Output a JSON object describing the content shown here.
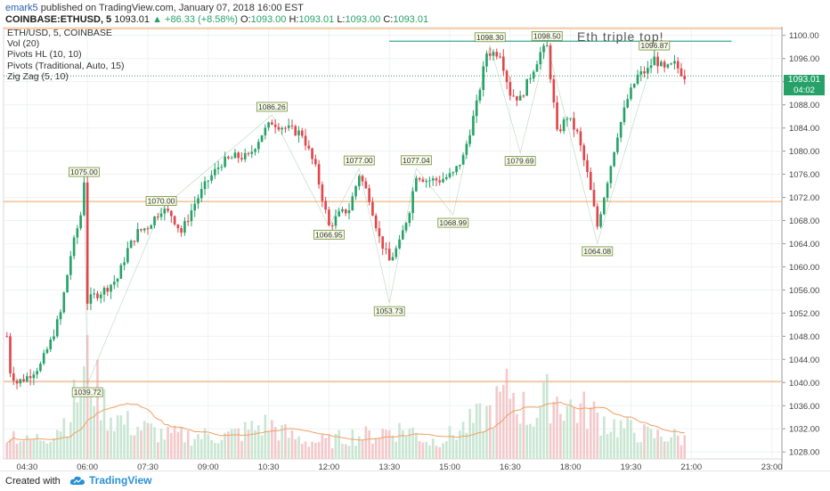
{
  "header": {
    "user": "emark5",
    "published_text": " published on TradingView.com, January 07, 2018 16:00 EST",
    "symbol": "COINBASE:ETHUSD, 5",
    "last": "1093.01",
    "change": "▲ +86.33 (+8.58%)",
    "o_label": "O:",
    "o_value": "1093.00",
    "h_label": "H:",
    "h_value": "1093.01",
    "l_label": "L:",
    "l_value": "1093.00",
    "c_label": "C:",
    "c_value": "1093.01"
  },
  "legend": {
    "items": [
      "ETH/USD, 5, COINBASE",
      "Vol (20)",
      "Pivots HL (10, 10)",
      "Pivots (Traditional, Auto, 15)",
      "Zig Zag (5, 10)"
    ]
  },
  "annotation": "Eth triple top!",
  "price_tag": "1093.01",
  "time_tag": "04:02",
  "footer": {
    "created_with": "Created with",
    "brand": "TradingView"
  },
  "colors": {
    "up": "#26a269",
    "down": "#e0454a",
    "pivot_line": "#f0a060",
    "resistance": "#3aa890",
    "zigzag": "#7ab07a",
    "volume_ma": "#f0a060",
    "current_price": "#26a269"
  },
  "chart_data": {
    "type": "candlestick",
    "y_ticks": [
      1028,
      1032,
      1036,
      1040,
      1044,
      1048,
      1052,
      1056,
      1060,
      1064,
      1068,
      1072,
      1076,
      1080,
      1084,
      1088,
      1092,
      1096,
      1100
    ],
    "ylim": [
      1026.8,
      1101.5
    ],
    "x_ticks": [
      "04:30",
      "06:00",
      "07:30",
      "09:00",
      "10:30",
      "12:00",
      "13:30",
      "15:00",
      "16:30",
      "18:00",
      "19:30",
      "21:00",
      "23:00"
    ],
    "current_price": 1093.01,
    "horizontal_levels": [
      1040.2,
      1071.3,
      1101.2
    ],
    "resistance_line": {
      "value": 1099.0,
      "from": "13:30",
      "to": "22:00"
    },
    "pivot_labels": [
      {
        "text": "1075.00",
        "time": "05:55",
        "value": 1075.0,
        "pos": "above"
      },
      {
        "text": "1070.00",
        "time": "07:50",
        "value": 1070.0,
        "pos": "above"
      },
      {
        "text": "1086.26",
        "time": "10:35",
        "value": 1086.26,
        "pos": "above"
      },
      {
        "text": "1077.00",
        "time": "12:45",
        "value": 1077.0,
        "pos": "above"
      },
      {
        "text": "1077.04",
        "time": "14:10",
        "value": 1077.04,
        "pos": "above"
      },
      {
        "text": "1098.30",
        "time": "16:00",
        "value": 1098.3,
        "pos": "above"
      },
      {
        "text": "1098.50",
        "time": "17:25",
        "value": 1098.5,
        "pos": "above"
      },
      {
        "text": "1096.87",
        "time": "20:05",
        "value": 1096.87,
        "pos": "above"
      },
      {
        "text": "1039.72",
        "time": "06:00",
        "value": 1039.72,
        "pos": "below"
      },
      {
        "text": "1066.95",
        "time": "12:00",
        "value": 1066.95,
        "pos": "below"
      },
      {
        "text": "1053.73",
        "time": "13:30",
        "value": 1053.73,
        "pos": "below"
      },
      {
        "text": "1068.99",
        "time": "15:05",
        "value": 1068.99,
        "pos": "below"
      },
      {
        "text": "1079.69",
        "time": "16:45",
        "value": 1079.69,
        "pos": "below"
      },
      {
        "text": "1064.08",
        "time": "18:40",
        "value": 1064.08,
        "pos": "below"
      }
    ],
    "path": [
      [
        "04:00",
        1048
      ],
      [
        "04:05",
        1042
      ],
      [
        "04:15",
        1040
      ],
      [
        "04:30",
        1041
      ],
      [
        "04:50",
        1043
      ],
      [
        "05:05",
        1047
      ],
      [
        "05:20",
        1052
      ],
      [
        "05:35",
        1062
      ],
      [
        "05:50",
        1069
      ],
      [
        "05:55",
        1075
      ],
      [
        "06:00",
        1054
      ],
      [
        "06:10",
        1055
      ],
      [
        "06:25",
        1056
      ],
      [
        "06:45",
        1058
      ],
      [
        "07:00",
        1063
      ],
      [
        "07:15",
        1066
      ],
      [
        "07:30",
        1067
      ],
      [
        "07:50",
        1070
      ],
      [
        "08:05",
        1069
      ],
      [
        "08:20",
        1066
      ],
      [
        "08:40",
        1071
      ],
      [
        "09:00",
        1075
      ],
      [
        "09:20",
        1078
      ],
      [
        "09:40",
        1079
      ],
      [
        "10:00",
        1079
      ],
      [
        "10:20",
        1083
      ],
      [
        "10:35",
        1085
      ],
      [
        "10:55",
        1084
      ],
      [
        "11:20",
        1083
      ],
      [
        "11:40",
        1077
      ],
      [
        "12:00",
        1067
      ],
      [
        "12:15",
        1069
      ],
      [
        "12:30",
        1070
      ],
      [
        "12:45",
        1076
      ],
      [
        "13:00",
        1072
      ],
      [
        "13:15",
        1065
      ],
      [
        "13:30",
        1061
      ],
      [
        "13:45",
        1064
      ],
      [
        "14:00",
        1070
      ],
      [
        "14:10",
        1076
      ],
      [
        "14:25",
        1075
      ],
      [
        "14:45",
        1075
      ],
      [
        "15:05",
        1076
      ],
      [
        "15:20",
        1079
      ],
      [
        "15:40",
        1088
      ],
      [
        "15:55",
        1097
      ],
      [
        "16:15",
        1097
      ],
      [
        "16:30",
        1090
      ],
      [
        "16:45",
        1089
      ],
      [
        "17:00",
        1093
      ],
      [
        "17:15",
        1097
      ],
      [
        "17:25",
        1098
      ],
      [
        "17:40",
        1083
      ],
      [
        "17:55",
        1086
      ],
      [
        "18:10",
        1083
      ],
      [
        "18:25",
        1076
      ],
      [
        "18:40",
        1067
      ],
      [
        "18:55",
        1075
      ],
      [
        "19:10",
        1083
      ],
      [
        "19:25",
        1089
      ],
      [
        "19:40",
        1093
      ],
      [
        "19:55",
        1094
      ],
      [
        "20:05",
        1096
      ],
      [
        "20:20",
        1094
      ],
      [
        "20:35",
        1095
      ],
      [
        "20:50",
        1093
      ]
    ],
    "volume_profile": [
      [
        "04:00",
        5
      ],
      [
        "04:30",
        3
      ],
      [
        "05:00",
        4
      ],
      [
        "05:30",
        7
      ],
      [
        "05:55",
        14
      ],
      [
        "06:00",
        16
      ],
      [
        "06:30",
        8
      ],
      [
        "07:00",
        6
      ],
      [
        "07:30",
        5
      ],
      [
        "08:00",
        4
      ],
      [
        "08:30",
        4
      ],
      [
        "09:00",
        4
      ],
      [
        "09:30",
        4
      ],
      [
        "10:00",
        5
      ],
      [
        "10:30",
        6
      ],
      [
        "11:00",
        4
      ],
      [
        "11:30",
        3
      ],
      [
        "12:00",
        3
      ],
      [
        "12:30",
        4
      ],
      [
        "13:00",
        4
      ],
      [
        "13:30",
        5
      ],
      [
        "14:00",
        5
      ],
      [
        "14:30",
        3
      ],
      [
        "15:00",
        4
      ],
      [
        "15:30",
        6
      ],
      [
        "16:00",
        8
      ],
      [
        "16:30",
        12
      ],
      [
        "17:00",
        7
      ],
      [
        "17:30",
        11
      ],
      [
        "18:00",
        9
      ],
      [
        "18:30",
        8
      ],
      [
        "19:00",
        6
      ],
      [
        "19:30",
        5
      ],
      [
        "20:00",
        4
      ],
      [
        "20:30",
        4
      ],
      [
        "21:00",
        3
      ]
    ],
    "volume_axis_max": 20
  }
}
